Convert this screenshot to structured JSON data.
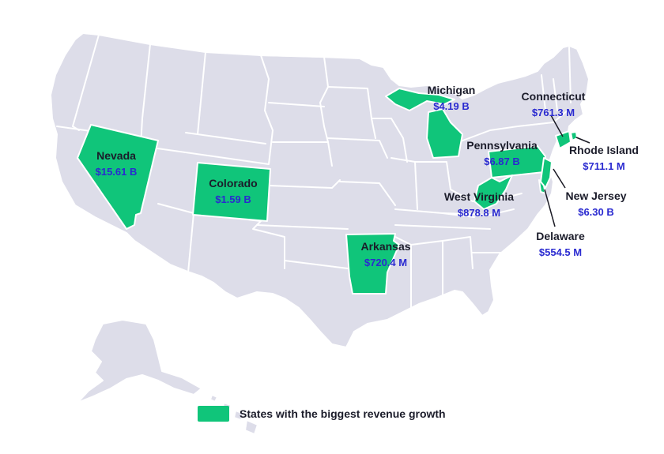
{
  "colors": {
    "highlight": "#10c57a",
    "base_state": "#dddde9",
    "state_name": "#1b1c2a",
    "value_text": "#2a2ad0"
  },
  "legend": {
    "label": "States with the biggest revenue growth"
  },
  "states": [
    {
      "id": "nevada",
      "name": "Nevada",
      "value": "$15.61 B"
    },
    {
      "id": "colorado",
      "name": "Colorado",
      "value": "$1.59 B"
    },
    {
      "id": "michigan",
      "name": "Michigan",
      "value": "$4.19 B"
    },
    {
      "id": "connecticut",
      "name": "Connecticut",
      "value": "$761.3 M"
    },
    {
      "id": "rhode-island",
      "name": "Rhode Island",
      "value": "$711.1 M"
    },
    {
      "id": "pennsylvania",
      "name": "Pennsylvania",
      "value": "$6.87 B"
    },
    {
      "id": "new-jersey",
      "name": "New Jersey",
      "value": "$6.30 B"
    },
    {
      "id": "west-virginia",
      "name": "West Virginia",
      "value": "$878.8 M"
    },
    {
      "id": "arkansas",
      "name": "Arkansas",
      "value": "$720.4 M"
    },
    {
      "id": "delaware",
      "name": "Delaware",
      "value": "$554.5 M"
    }
  ]
}
